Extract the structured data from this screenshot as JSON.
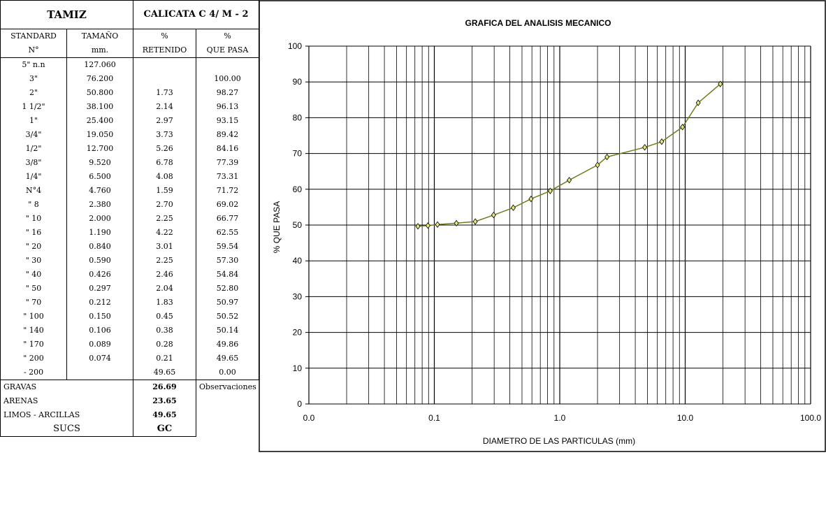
{
  "table": {
    "tamiz_title": "TAMIZ",
    "calicata_title": "CALICATA C 4/ M - 2",
    "col_headers_1": [
      "STANDARD",
      "TAMAÑO",
      "%",
      "%"
    ],
    "col_headers_2": [
      "N°",
      "mm.",
      "RETENIDO",
      "QUE PASA"
    ],
    "rows": [
      [
        "5\" n.n",
        "127.060",
        "",
        ""
      ],
      [
        "3\"",
        "76.200",
        "",
        "100.00"
      ],
      [
        "2\"",
        "50.800",
        "1.73",
        "98.27"
      ],
      [
        "1 1/2\"",
        "38.100",
        "2.14",
        "96.13"
      ],
      [
        "1\"",
        "25.400",
        "2.97",
        "93.15"
      ],
      [
        "3/4\"",
        "19.050",
        "3.73",
        "89.42"
      ],
      [
        "1/2\"",
        "12.700",
        "5.26",
        "84.16"
      ],
      [
        "3/8\"",
        "9.520",
        "6.78",
        "77.39"
      ],
      [
        "1/4\"",
        "6.500",
        "4.08",
        "73.31"
      ],
      [
        "N°4",
        "4.760",
        "1.59",
        "71.72"
      ],
      [
        "\" 8",
        "2.380",
        "2.70",
        "69.02"
      ],
      [
        "\" 10",
        "2.000",
        "2.25",
        "66.77"
      ],
      [
        "\" 16",
        "1.190",
        "4.22",
        "62.55"
      ],
      [
        "\" 20",
        "0.840",
        "3.01",
        "59.54"
      ],
      [
        "\" 30",
        "0.590",
        "2.25",
        "57.30"
      ],
      [
        "\" 40",
        "0.426",
        "2.46",
        "54.84"
      ],
      [
        "\" 50",
        "0.297",
        "2.04",
        "52.80"
      ],
      [
        "\" 70",
        "0.212",
        "1.83",
        "50.97"
      ],
      [
        "\" 100",
        "0.150",
        "0.45",
        "50.52"
      ],
      [
        "\" 140",
        "0.106",
        "0.38",
        "50.14"
      ],
      [
        "\" 170",
        "0.089",
        "0.28",
        "49.86"
      ],
      [
        "\" 200",
        "0.074",
        "0.21",
        "49.65"
      ],
      [
        "- 200",
        "",
        "49.65",
        "0.00"
      ]
    ],
    "summary": {
      "gravas_label": "GRAVAS",
      "gravas_value": "26.69",
      "arenas_label": "ARENAS",
      "arenas_value": "23.65",
      "limos_label": "LIMOS - ARCILLAS",
      "limos_value": "49.65",
      "sucs_label": "SUCS",
      "sucs_value": "GC",
      "observaciones_label": "Observaciones"
    }
  },
  "chart_data": {
    "type": "line",
    "title": "GRAFICA DEL ANALISIS MECANICO",
    "xlabel": "DIAMETRO DE LAS PARTICULAS  (mm)",
    "ylabel": "% QUE PASA",
    "x_scale": "log",
    "xlim": [
      0.01,
      100
    ],
    "ylim": [
      0,
      100
    ],
    "x_tick_labels": [
      "0.0",
      "0.1",
      "1.0",
      "10.0",
      "100.0"
    ],
    "y_ticks": [
      0,
      10,
      20,
      30,
      40,
      50,
      60,
      70,
      80,
      90,
      100
    ],
    "grid": true,
    "series": [
      {
        "x": [
          19.05,
          12.7,
          9.52,
          6.5,
          4.76,
          2.38,
          2.0,
          1.19,
          0.84,
          0.59,
          0.426,
          0.297,
          0.212,
          0.15,
          0.106,
          0.089,
          0.074
        ],
        "y": [
          89.42,
          84.16,
          77.39,
          73.31,
          71.72,
          69.02,
          66.77,
          62.55,
          59.54,
          57.3,
          54.84,
          52.8,
          50.97,
          50.52,
          50.14,
          49.86,
          49.65
        ]
      }
    ],
    "line_color": "#6f7d1e",
    "marker_color": "#e8e87a"
  }
}
